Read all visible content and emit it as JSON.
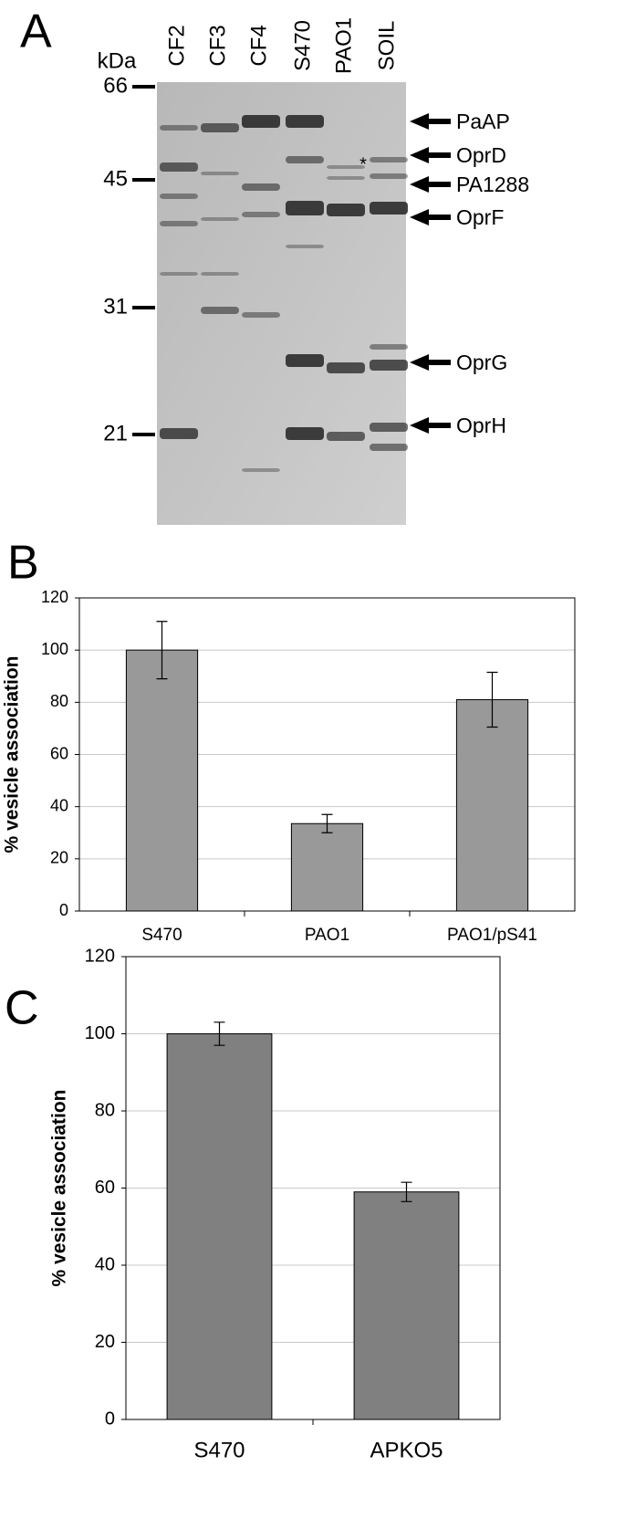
{
  "panel_a": {
    "panel": "A",
    "unit_label": "kDa",
    "lanes": [
      "CF2",
      "CF3",
      "CF4",
      "S470",
      "PAO1",
      "SOIL"
    ],
    "markers": [
      "66",
      "45",
      "31",
      "21"
    ],
    "proteins": [
      "PaAP",
      "OprD",
      "PA1288",
      "OprF",
      "OprG",
      "OprH"
    ],
    "note": "*"
  },
  "chart_data": [
    {
      "type": "bar",
      "panel": "B",
      "ylabel": "% vesicle association",
      "categories": [
        "S470",
        "PAO1",
        "PAO1/pS41"
      ],
      "values": [
        100,
        33.5,
        81
      ],
      "errors": [
        11,
        3.5,
        10.5
      ],
      "color": "#999999",
      "ylim": [
        0,
        120
      ],
      "yticks": [
        0,
        20,
        40,
        60,
        80,
        100,
        120
      ],
      "grid": true
    },
    {
      "type": "bar",
      "panel": "C",
      "ylabel": "% vesicle association",
      "categories": [
        "S470",
        "APKO5"
      ],
      "values": [
        100,
        59
      ],
      "errors": [
        3,
        2.5
      ],
      "color": "#808080",
      "ylim": [
        0,
        120
      ],
      "yticks": [
        0,
        20,
        40,
        60,
        80,
        100,
        120
      ],
      "grid": true
    }
  ]
}
